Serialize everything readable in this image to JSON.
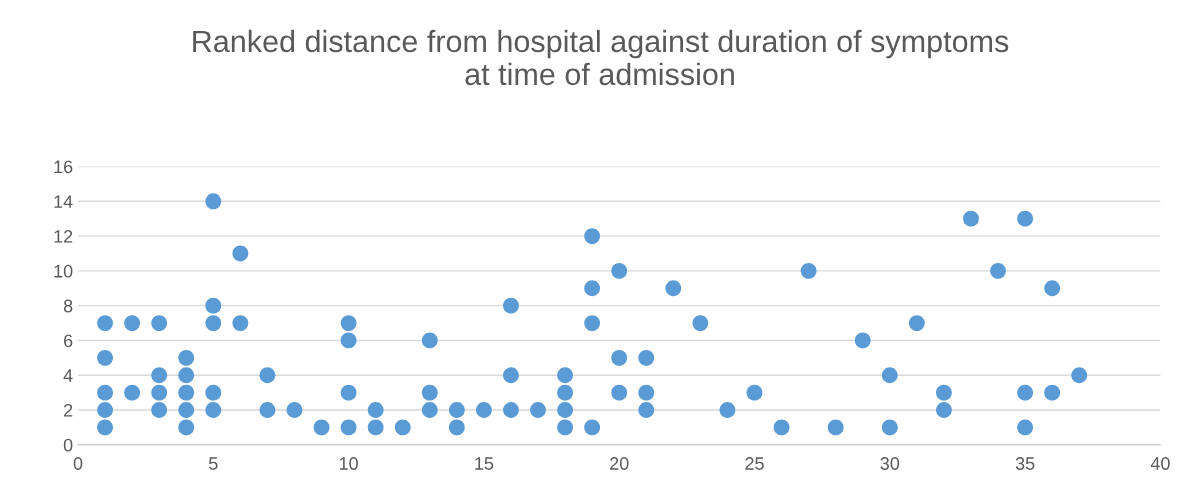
{
  "chart_data": {
    "type": "scatter",
    "title": "Ranked distance from hospital against duration of symptoms\nat time of admission",
    "x": [
      1,
      1,
      1,
      1,
      1,
      2,
      2,
      3,
      3,
      3,
      3,
      4,
      4,
      4,
      4,
      4,
      5,
      5,
      5,
      5,
      5,
      6,
      6,
      7,
      7,
      8,
      9,
      10,
      10,
      10,
      10,
      11,
      11,
      12,
      13,
      13,
      13,
      14,
      14,
      15,
      16,
      16,
      16,
      17,
      18,
      18,
      18,
      18,
      19,
      19,
      19,
      19,
      20,
      20,
      20,
      21,
      21,
      21,
      22,
      23,
      24,
      25,
      26,
      27,
      28,
      29,
      30,
      30,
      31,
      32,
      32,
      33,
      34,
      35,
      35,
      35,
      36,
      36,
      37
    ],
    "series": [
      {
        "color": "#5b9bd5",
        "values": [
          7,
          5,
          3,
          2,
          1,
          7,
          3,
          7,
          4,
          3,
          2,
          5,
          4,
          3,
          2,
          1,
          14,
          8,
          7,
          3,
          2,
          11,
          7,
          4,
          2,
          2,
          1,
          7,
          6,
          3,
          1,
          2,
          1,
          1,
          6,
          3,
          2,
          2,
          1,
          2,
          8,
          4,
          2,
          2,
          4,
          3,
          2,
          1,
          12,
          9,
          7,
          1,
          10,
          5,
          3,
          5,
          3,
          2,
          9,
          7,
          2,
          3,
          1,
          10,
          1,
          6,
          4,
          1,
          7,
          3,
          2,
          13,
          10,
          13,
          3,
          1,
          9,
          3,
          4
        ]
      }
    ],
    "xlim": [
      0,
      40
    ],
    "xticks": [
      0,
      5,
      10,
      15,
      20,
      25,
      30,
      35,
      40
    ],
    "ylim": [
      0,
      16
    ],
    "yticks": [
      0,
      2,
      4,
      6,
      8,
      10,
      12,
      14,
      16
    ],
    "grid": "y",
    "marker": "circle",
    "legend": false
  }
}
